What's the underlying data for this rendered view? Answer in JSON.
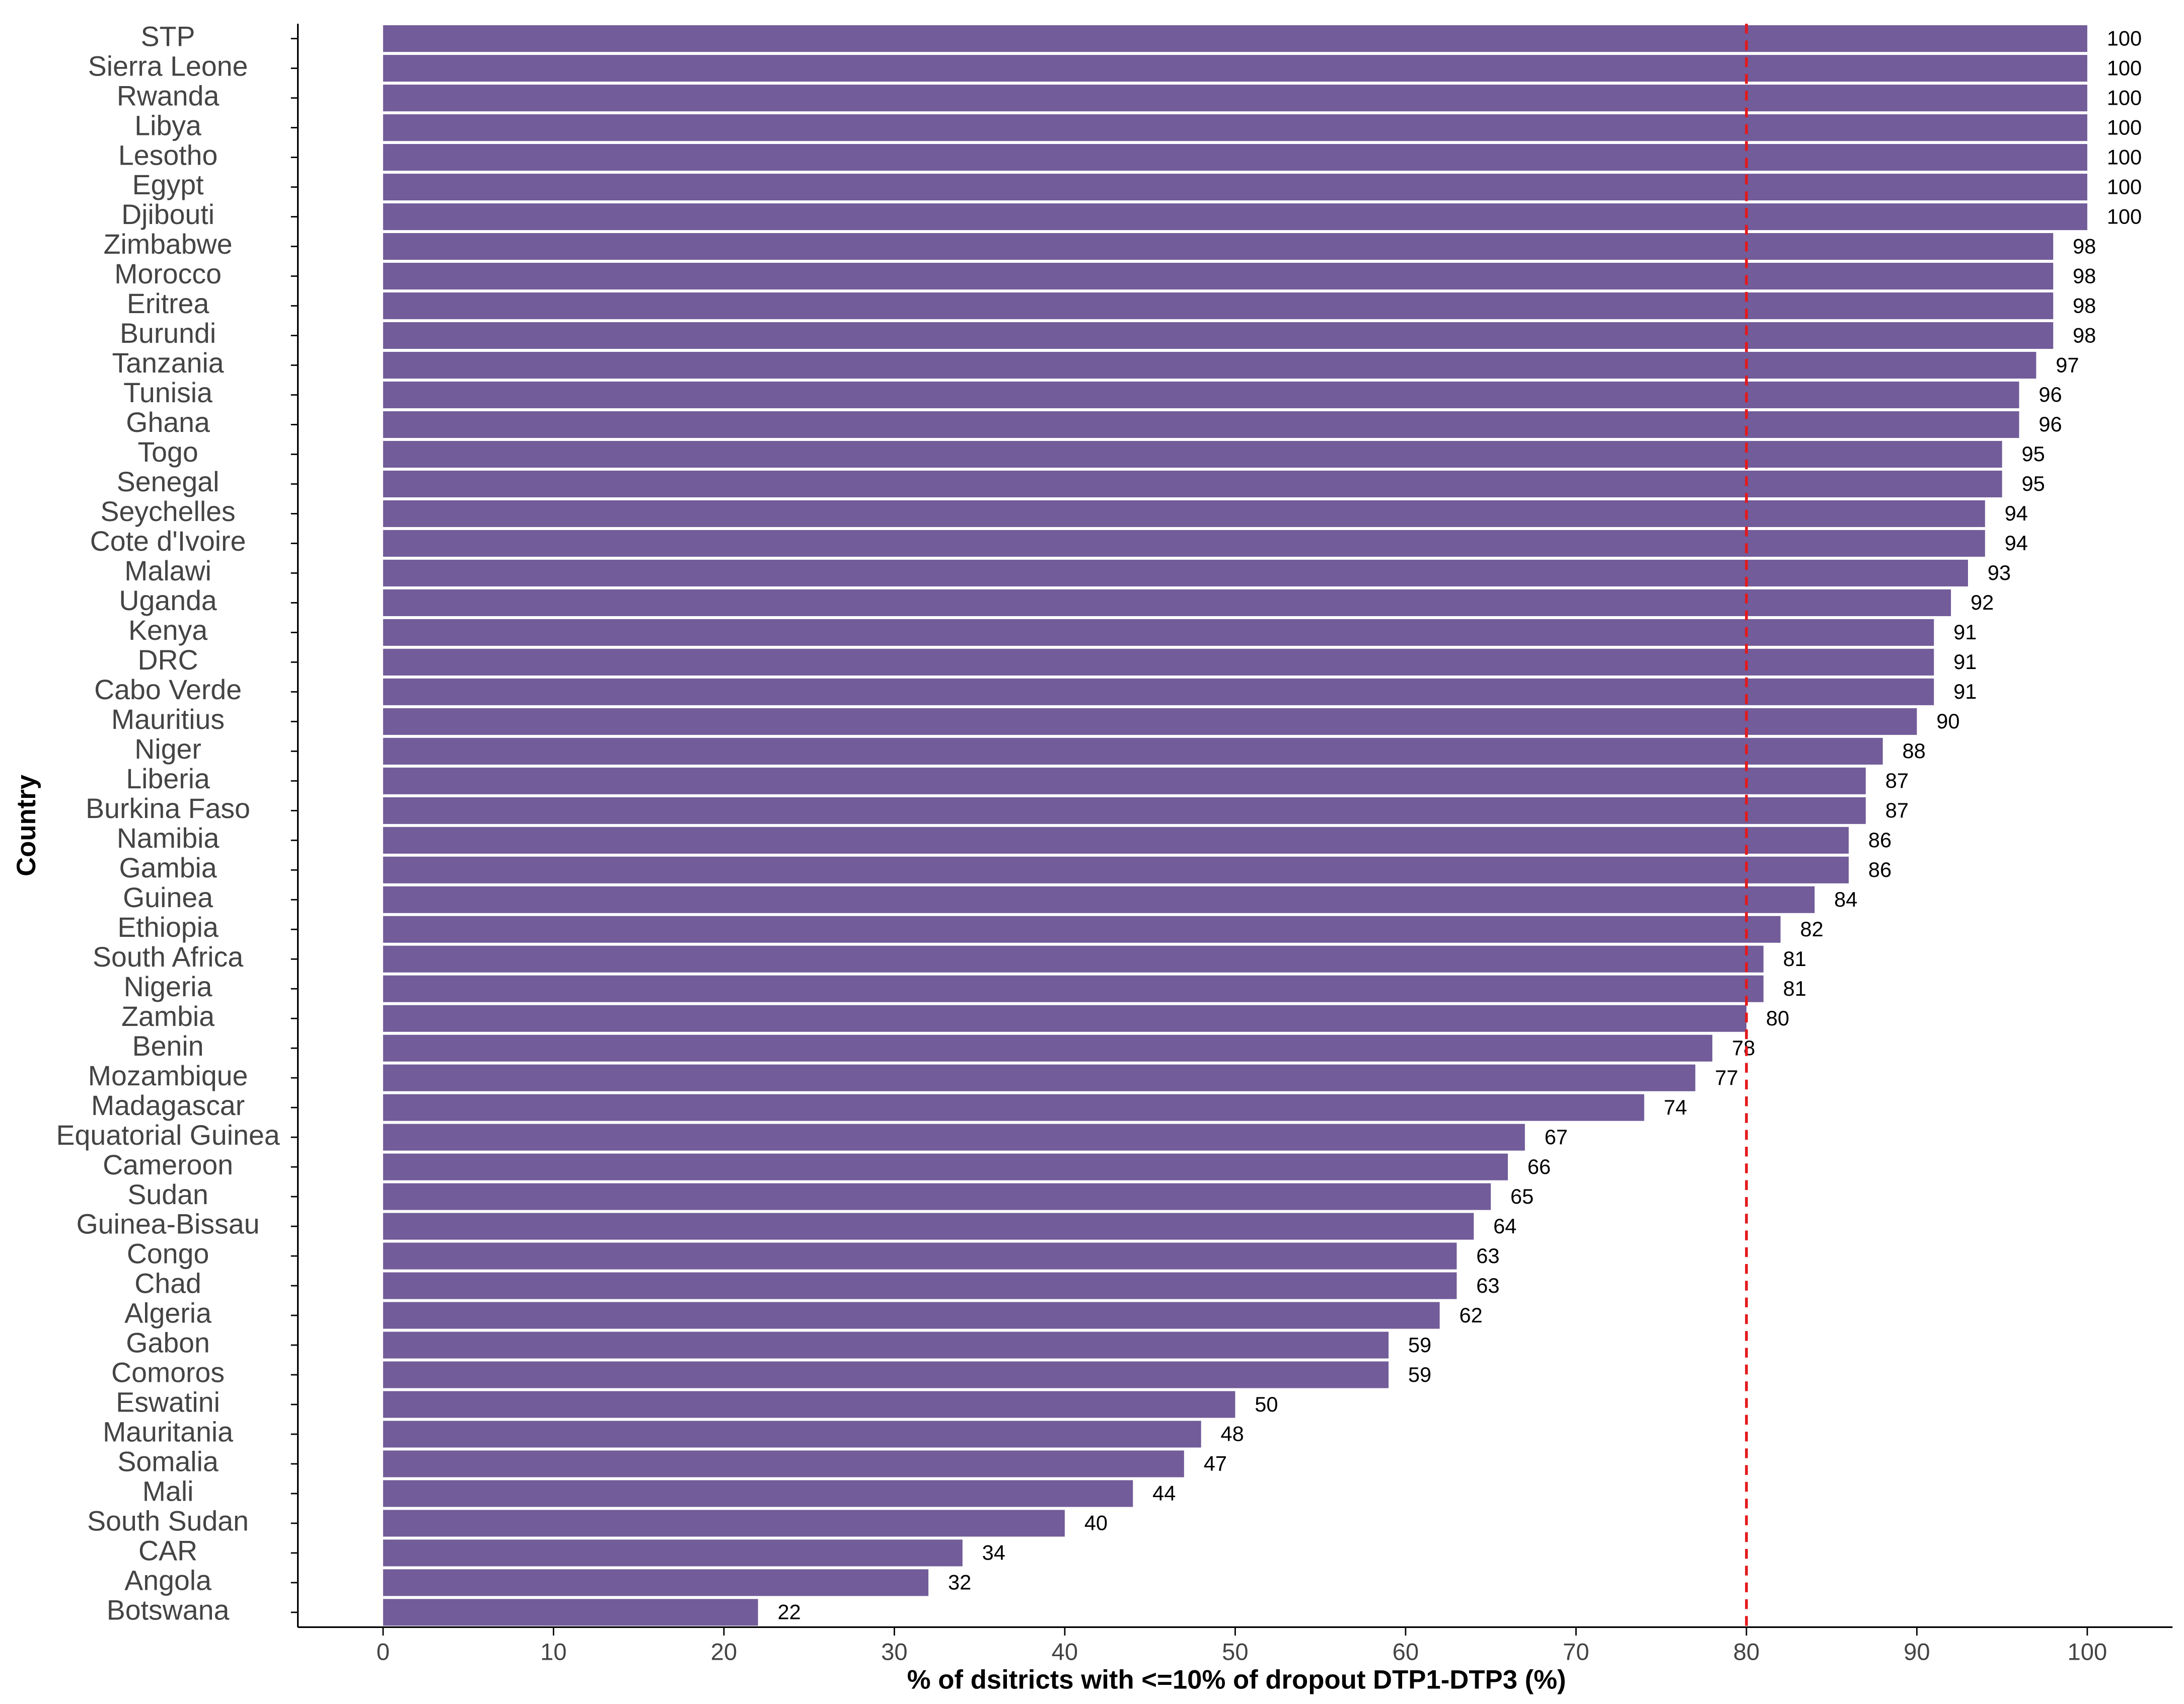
{
  "chart_data": {
    "type": "barh",
    "x_label": "% of dsitricts with <=10% of dropout DTP1-DTP3 (%)",
    "y_label": "Country",
    "categories": [
      "STP",
      "Sierra Leone",
      "Rwanda",
      "Libya",
      "Lesotho",
      "Egypt",
      "Djibouti",
      "Zimbabwe",
      "Morocco",
      "Eritrea",
      "Burundi",
      "Tanzania",
      "Tunisia",
      "Ghana",
      "Togo",
      "Senegal",
      "Seychelles",
      "Cote d'Ivoire",
      "Malawi",
      "Uganda",
      "Kenya",
      "DRC",
      "Cabo Verde",
      "Mauritius",
      "Niger",
      "Liberia",
      "Burkina Faso",
      "Namibia",
      "Gambia",
      "Guinea",
      "Ethiopia",
      "South Africa",
      "Nigeria",
      "Zambia",
      "Benin",
      "Mozambique",
      "Madagascar",
      "Equatorial Guinea",
      "Cameroon",
      "Sudan",
      "Guinea-Bissau",
      "Congo",
      "Chad",
      "Algeria",
      "Gabon",
      "Comoros",
      "Eswatini",
      "Mauritania",
      "Somalia",
      "Mali",
      "South Sudan",
      "CAR",
      "Angola",
      "Botswana"
    ],
    "values": [
      100,
      100,
      100,
      100,
      100,
      100,
      100,
      98,
      98,
      98,
      98,
      97,
      96,
      96,
      95,
      95,
      94,
      94,
      93,
      92,
      91,
      91,
      91,
      90,
      88,
      87,
      87,
      86,
      86,
      84,
      82,
      81,
      81,
      80,
      78,
      77,
      74,
      67,
      66,
      65,
      64,
      63,
      63,
      62,
      59,
      59,
      50,
      48,
      47,
      44,
      40,
      34,
      32,
      22
    ],
    "color": "#725c99",
    "xlim": [
      -5,
      105
    ],
    "xticks": [
      0,
      10,
      20,
      30,
      40,
      50,
      60,
      70,
      80,
      90,
      100
    ],
    "reference_line": {
      "value": 80,
      "color": "#e31a1c"
    }
  }
}
